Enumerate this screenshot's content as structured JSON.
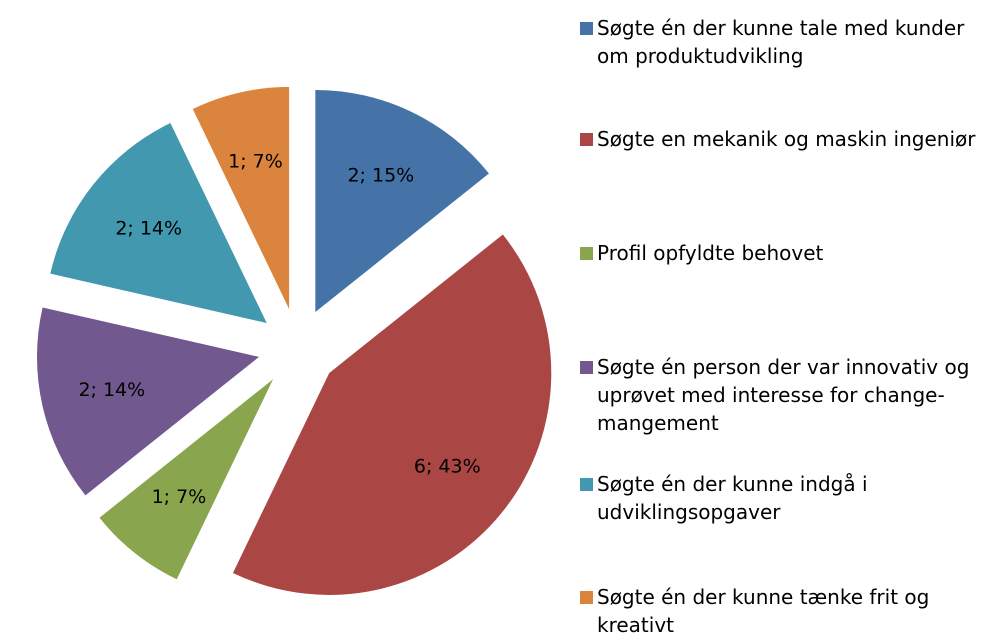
{
  "chart_data": {
    "type": "pie",
    "categories": [
      "Søgte én der kunne tale med kunder om produktudvikling",
      "Søgte en mekanik og maskin ingeniør",
      "Profil opfyldte behovet",
      "Søgte én person der var innovativ og uprøvet med interesse for change-mangement",
      "Søgte én der kunne indgå i udviklingsopgaver",
      "Søgte én der kunne tænke frit og kreativt"
    ],
    "values": [
      2,
      6,
      1,
      2,
      2,
      1
    ],
    "value_labels": [
      "2; 15%",
      "6; 43%",
      "1; 7%",
      "2; 14%",
      "2; 14%",
      "1; 7%"
    ],
    "colors": [
      "#4572a7",
      "#aa4643",
      "#89a54e",
      "#71588f",
      "#4198af",
      "#db843d"
    ],
    "legend": "right"
  }
}
